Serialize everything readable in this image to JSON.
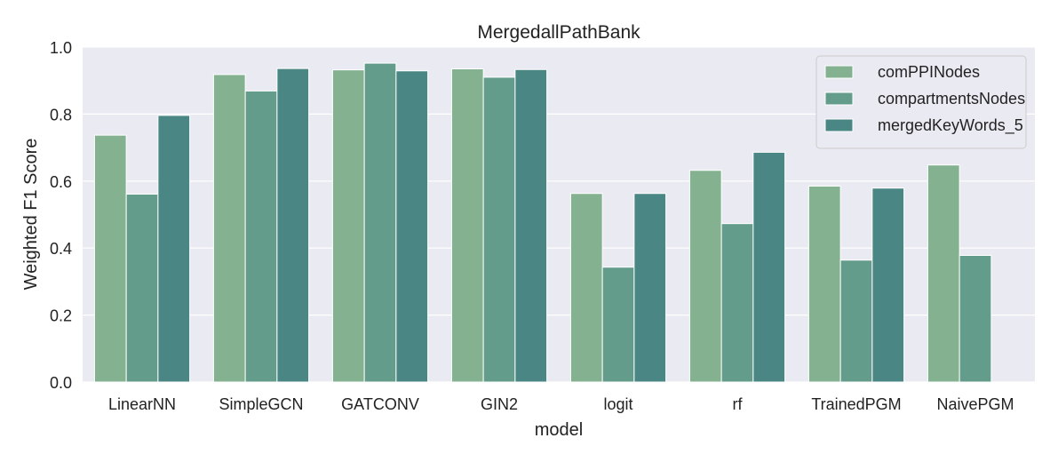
{
  "chart_data": {
    "type": "bar",
    "title": "MergedallPathBank",
    "xlabel": "model",
    "ylabel": "Weighted F1 Score",
    "ylim": [
      0,
      1.0
    ],
    "yticks": [
      "0.0",
      "0.2",
      "0.4",
      "0.6",
      "0.8",
      "1.0"
    ],
    "grid": true,
    "legend_position": "top-right",
    "categories": [
      "LinearNN",
      "SimpleGCN",
      "GATCONV",
      "GIN2",
      "logit",
      "rf",
      "TrainedPGM",
      "NaivePGM"
    ],
    "series": [
      {
        "name": "comPPINodes",
        "color": "#84b291",
        "values": [
          0.737,
          0.918,
          0.932,
          0.935,
          0.563,
          0.632,
          0.585,
          0.648
        ]
      },
      {
        "name": "compartmentsNodes",
        "color": "#639c8b",
        "values": [
          0.561,
          0.869,
          0.952,
          0.91,
          0.343,
          0.473,
          0.364,
          0.378
        ]
      },
      {
        "name": "mergedKeyWords_5",
        "color": "#4a8683",
        "values": [
          0.796,
          0.936,
          0.929,
          0.933,
          0.563,
          0.686,
          0.579,
          null
        ]
      }
    ]
  },
  "colors": {
    "plot_background": "#eaeaf2",
    "grid": "#ffffff"
  }
}
